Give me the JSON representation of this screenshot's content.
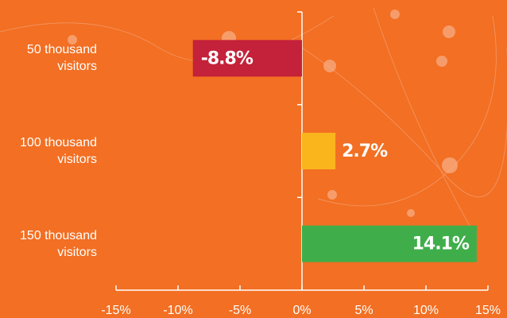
{
  "chart_data": {
    "type": "hbar",
    "categories": [
      "50 thousand visitors",
      "100 thousand visitors",
      "150 thousand visitors"
    ],
    "values": [
      -8.8,
      2.7,
      14.1
    ],
    "value_labels": [
      "-8.8%",
      "2.7%",
      "14.1%"
    ],
    "colors": [
      "#c4213a",
      "#fbb51c",
      "#3fae4a"
    ],
    "xlim": [
      -15,
      15
    ],
    "xticks": [
      {
        "value": -15,
        "label": "-15%"
      },
      {
        "value": -10,
        "label": "-10%"
      },
      {
        "value": -5,
        "label": "-5%"
      },
      {
        "value": 0,
        "label": "0%"
      },
      {
        "value": 5,
        "label": "5%"
      },
      {
        "value": 10,
        "label": "10%"
      },
      {
        "value": 15,
        "label": "15%"
      }
    ]
  }
}
